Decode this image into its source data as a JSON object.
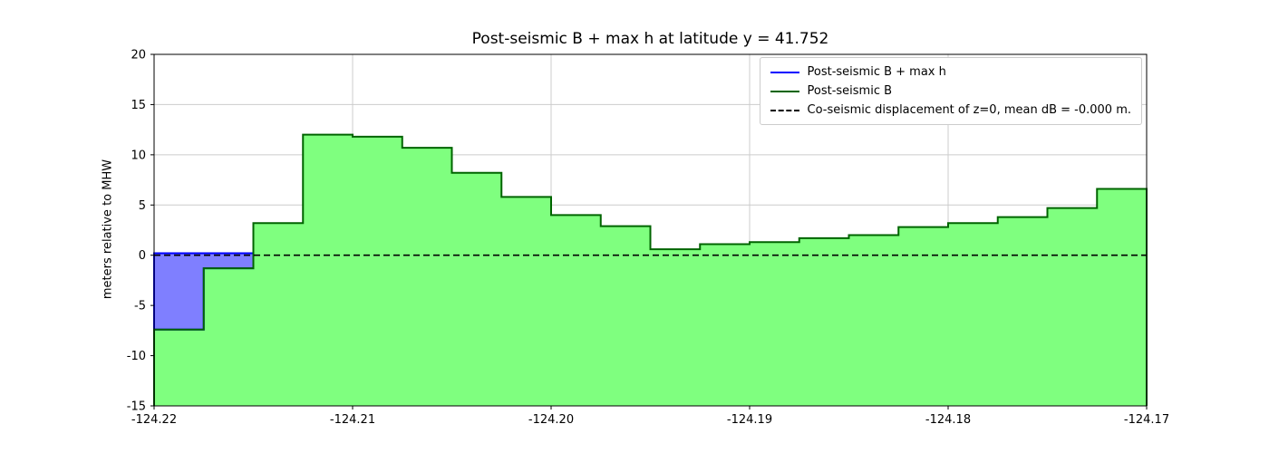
{
  "figure": {
    "title": "Post-seismic B + max h at latitude y = 41.752",
    "ylabel": "meters relative to MHW"
  },
  "legend": {
    "entries": [
      {
        "label": "Post-seismic B + max h",
        "color": "#0000FF",
        "style": "solid"
      },
      {
        "label": "Post-seismic B",
        "color": "#006400",
        "style": "solid"
      },
      {
        "label": "Co-seismic displacement of z=0, mean dB = -0.000 m.",
        "color": "#000000",
        "style": "dashed"
      }
    ]
  },
  "chart_data": {
    "type": "area",
    "title": "Post-seismic B + max h at latitude y = 41.752",
    "xlabel": "",
    "ylabel": "meters relative to MHW",
    "xlim": [
      -124.22,
      -124.17
    ],
    "ylim": [
      -15,
      20
    ],
    "grid": true,
    "legend_position": "upper right",
    "xticks": [
      -124.22,
      -124.21,
      -124.2,
      -124.19,
      -124.18,
      -124.17
    ],
    "xtick_labels": [
      "-124.22",
      "-124.21",
      "-124.20",
      "-124.19",
      "-124.18",
      "-124.17"
    ],
    "yticks": [
      -15,
      -10,
      -5,
      0,
      5,
      10,
      15,
      20
    ],
    "ytick_labels": [
      "-15",
      "-10",
      "-5",
      "0",
      "5",
      "10",
      "15",
      "20"
    ],
    "step_width_deg": 0.0025,
    "x_edges": [
      -124.22,
      -124.2175,
      -124.215,
      -124.2125,
      -124.21,
      -124.2075,
      -124.205,
      -124.2025,
      -124.2,
      -124.1975,
      -124.195,
      -124.1925,
      -124.19,
      -124.1875,
      -124.185,
      -124.1825,
      -124.18,
      -124.1775,
      -124.175,
      -124.1725,
      -124.17
    ],
    "series": [
      {
        "name": "Post-seismic B + max h",
        "line_color": "#0000FF",
        "fill_color": "#7F7FFF",
        "values": [
          0.2,
          0.2,
          3.2,
          12.0,
          11.8,
          10.7,
          8.2,
          5.8,
          4.0,
          2.9,
          0.6,
          1.1,
          1.3,
          1.7,
          2.0,
          2.8,
          3.2,
          3.8,
          4.7,
          6.6
        ]
      },
      {
        "name": "Post-seismic B",
        "line_color": "#006400",
        "fill_color": "#7FFF7F",
        "values": [
          -7.4,
          -1.3,
          3.2,
          12.0,
          11.8,
          10.7,
          8.2,
          5.8,
          4.0,
          2.9,
          0.6,
          1.1,
          1.3,
          1.7,
          2.0,
          2.8,
          3.2,
          3.8,
          4.7,
          6.6
        ]
      }
    ],
    "reference_line": {
      "label": "Co-seismic displacement of z=0, mean dB = -0.000 m.",
      "y": 0,
      "style": "dashed",
      "color": "#000000"
    },
    "grid_color": "#cccccc"
  }
}
